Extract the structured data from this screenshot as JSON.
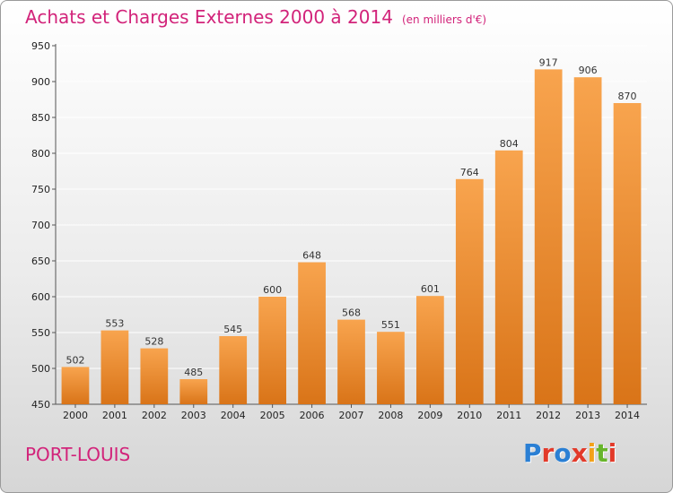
{
  "header": {
    "title": "Achats et Charges Externes 2000 à 2014",
    "subtitle": "(en milliers d'€)"
  },
  "footer": {
    "town": "PORT-LOUIS",
    "logo": "Proxiti"
  },
  "colors": {
    "bar_light": "#f8a44e",
    "bar_dark": "#d97418",
    "title": "#d2237a",
    "grid": "#ffffff",
    "logo": [
      "#2a7fd4",
      "#e23a2a",
      "#2a7fd4",
      "#e23a2a",
      "#f2a11a",
      "#67b52b",
      "#e23a2a"
    ]
  },
  "chart_data": {
    "type": "bar",
    "title": "Achats et Charges Externes 2000 à 2014",
    "subtitle": "(en milliers d'€)",
    "categories": [
      "2000",
      "2001",
      "2002",
      "2003",
      "2004",
      "2005",
      "2006",
      "2007",
      "2008",
      "2009",
      "2010",
      "2011",
      "2012",
      "2013",
      "2014"
    ],
    "values": [
      502,
      553,
      528,
      485,
      545,
      600,
      648,
      568,
      551,
      601,
      764,
      804,
      917,
      906,
      870
    ],
    "ylim": [
      450,
      950
    ],
    "yticks": [
      450,
      500,
      550,
      600,
      650,
      700,
      750,
      800,
      850,
      900,
      950
    ],
    "xlabel": "",
    "ylabel": "",
    "grid": true,
    "legend": "none"
  }
}
